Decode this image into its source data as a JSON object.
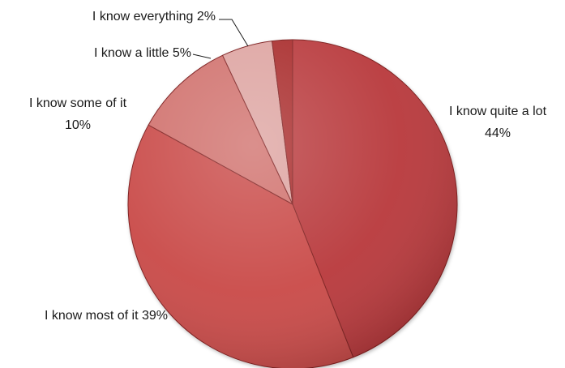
{
  "chart_data": {
    "type": "pie",
    "title": "",
    "slices": [
      {
        "label": "I know quite a lot",
        "value": 44,
        "value_text": "44%",
        "color": "#b8393a"
      },
      {
        "label": "I know most of it",
        "value": 39,
        "value_text": "39%",
        "color": "#c94a47"
      },
      {
        "label": "I know some of it",
        "value": 10,
        "value_text": "10%",
        "color": "#d0706c"
      },
      {
        "label": "I know a little",
        "value": 5,
        "value_text": "5%",
        "color": "#dda3a0"
      },
      {
        "label": "I know everything",
        "value": 2,
        "value_text": "2%",
        "color": "#a82c2c"
      }
    ],
    "start_angle_deg": 90,
    "direction": "clockwise",
    "style": "3d-shaded",
    "legend": "none",
    "data_labels": "outside, category and percent"
  },
  "labels": {
    "quite_a_lot_line1": "I know quite a lot",
    "quite_a_lot_line2": "44%",
    "most": "I know most of it 39%",
    "some_line1": "I know some of it",
    "some_line2": "10%",
    "little": "I know a little 5%",
    "everything": "I know everything 2%"
  },
  "colors": {
    "leader_line": "#1a1a1a",
    "slice_edge": "#7d1f1f"
  }
}
